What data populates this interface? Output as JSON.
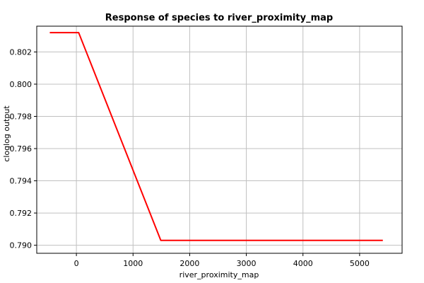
{
  "chart_data": {
    "type": "line",
    "title": "Response of species to river_proximity_map",
    "xlabel": "river_proximity_map",
    "ylabel": "cloglog output",
    "xlim": [
      -700,
      5750
    ],
    "ylim": [
      0.7895,
      0.8036
    ],
    "xticks": [
      0,
      1000,
      2000,
      3000,
      4000,
      5000
    ],
    "yticks": [
      0.79,
      0.792,
      0.794,
      0.796,
      0.798,
      0.8,
      0.802
    ],
    "xtick_labels": [
      "0",
      "1000",
      "2000",
      "3000",
      "4000",
      "5000"
    ],
    "ytick_labels": [
      "0.790",
      "0.792",
      "0.794",
      "0.796",
      "0.798",
      "0.800",
      "0.802"
    ],
    "grid": true,
    "series": [
      {
        "color": "#ff0000",
        "x": [
          -470,
          40,
          1490,
          5410
        ],
        "y": [
          0.8032,
          0.8032,
          0.7903,
          0.7903
        ]
      }
    ]
  }
}
